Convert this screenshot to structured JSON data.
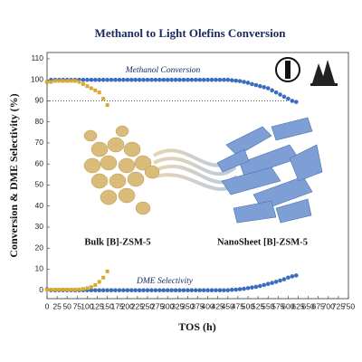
{
  "chart_data": {
    "type": "scatter",
    "title": "Methanol to Light Olefins Conversion",
    "xlabel": "TOS (h)",
    "ylabel": "Conversion  & DME Selectivity (%)",
    "xlim": [
      0,
      750
    ],
    "xticks": [
      0,
      25,
      50,
      75,
      100,
      125,
      150,
      175,
      200,
      225,
      250,
      275,
      300,
      325,
      350,
      375,
      400,
      425,
      450,
      475,
      500,
      525,
      550,
      575,
      600,
      625,
      650,
      675,
      700,
      725,
      750
    ],
    "ylim": [
      -4,
      113
    ],
    "yticks": [
      0,
      10,
      20,
      30,
      40,
      50,
      60,
      70,
      80,
      90,
      100,
      110
    ],
    "reference_line": 90,
    "annotations": [
      "Methanol Conversion",
      "DME Selectivity",
      "Bulk [B]-ZSM-5",
      "NanoSheet [B]-ZSM-5"
    ],
    "series": [
      {
        "name": "NanoSheet [B]-ZSM-5 conversion",
        "color": "#3a6cc2",
        "x": [
          0,
          10,
          20,
          30,
          40,
          50,
          60,
          70,
          80,
          90,
          100,
          110,
          120,
          130,
          140,
          150,
          160,
          170,
          180,
          190,
          200,
          210,
          220,
          230,
          240,
          250,
          260,
          270,
          280,
          290,
          300,
          310,
          320,
          330,
          340,
          350,
          360,
          370,
          380,
          390,
          400,
          410,
          420,
          430,
          440,
          450,
          460,
          470,
          480,
          490,
          500,
          510,
          520,
          530,
          540,
          550,
          560,
          570,
          580,
          590,
          600,
          610,
          620
        ],
        "values": [
          99,
          100,
          100,
          100,
          100,
          100,
          100,
          100,
          100,
          100,
          100,
          100,
          100,
          100,
          100,
          100,
          100,
          100,
          100,
          100,
          100,
          100,
          100,
          100,
          100,
          100,
          100,
          100,
          100,
          100,
          100,
          100,
          100,
          100,
          100,
          100,
          100,
          100,
          100,
          100,
          100,
          100,
          100,
          100,
          100,
          100,
          99.8,
          99.6,
          99.4,
          99,
          98.6,
          98,
          97.5,
          97,
          96.5,
          96,
          95,
          94,
          93,
          92,
          91,
          90,
          89.5
        ]
      },
      {
        "name": "Bulk [B]-ZSM-5 conversion",
        "color": "#d9a830",
        "x": [
          0,
          10,
          20,
          30,
          40,
          50,
          60,
          70,
          80,
          90,
          100,
          110,
          120,
          130,
          140,
          150
        ],
        "values": [
          99,
          99,
          99.5,
          99.5,
          99.5,
          99.5,
          99.5,
          99.5,
          99,
          98,
          97,
          96,
          95,
          94,
          91,
          88
        ]
      },
      {
        "name": "NanoSheet [B]-ZSM-5 DME selectivity",
        "color": "#3a6cc2",
        "x": [
          0,
          10,
          20,
          30,
          40,
          50,
          60,
          70,
          80,
          90,
          100,
          110,
          120,
          130,
          140,
          150,
          160,
          170,
          180,
          190,
          200,
          210,
          220,
          230,
          240,
          250,
          260,
          270,
          280,
          290,
          300,
          310,
          320,
          330,
          340,
          350,
          360,
          370,
          380,
          390,
          400,
          410,
          420,
          430,
          440,
          450,
          460,
          470,
          480,
          490,
          500,
          510,
          520,
          530,
          540,
          550,
          560,
          570,
          580,
          590,
          600,
          610,
          620
        ],
        "values": [
          0.5,
          0,
          0,
          0,
          0,
          0,
          0,
          0,
          0,
          0,
          0,
          0,
          0,
          0,
          0,
          0,
          0,
          0,
          0,
          0,
          0,
          0,
          0,
          0,
          0,
          0,
          0,
          0,
          0,
          0,
          0,
          0,
          0,
          0,
          0,
          0,
          0,
          0,
          0,
          0,
          0,
          0,
          0,
          0,
          0,
          0,
          0.2,
          0.3,
          0.5,
          0.7,
          1,
          1.3,
          1.6,
          2,
          2.5,
          3,
          3.5,
          4,
          4.6,
          5.2,
          6,
          6.6,
          7
        ]
      },
      {
        "name": "Bulk [B]-ZSM-5 DME selectivity",
        "color": "#d9a830",
        "x": [
          0,
          10,
          20,
          30,
          40,
          50,
          60,
          70,
          80,
          90,
          100,
          110,
          120,
          130,
          140,
          150
        ],
        "values": [
          0.3,
          0.3,
          0.3,
          0.3,
          0.3,
          0.3,
          0.3,
          0.3,
          0.4,
          0.6,
          1,
          1.5,
          2.5,
          4,
          6,
          9
        ]
      }
    ]
  }
}
